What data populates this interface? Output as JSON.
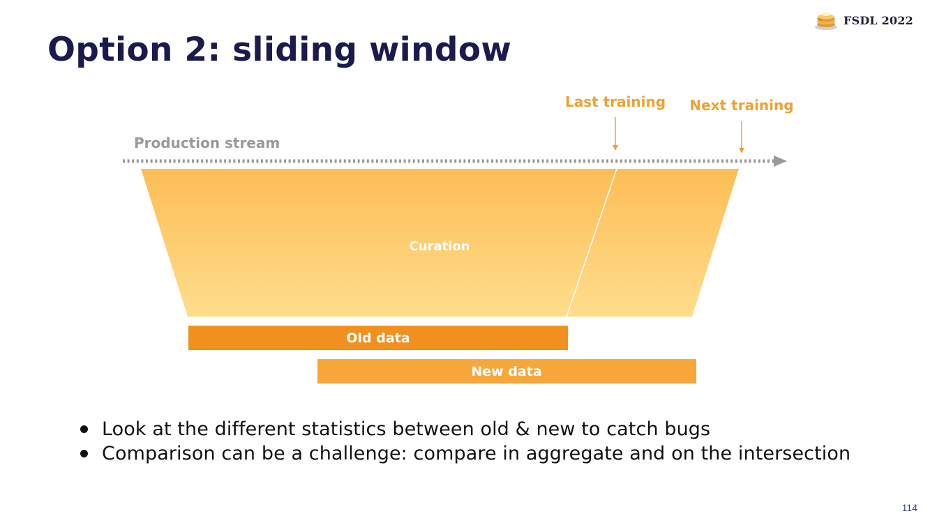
{
  "brand": {
    "name": "FSDL 2022",
    "icon": "pancake-stack-icon"
  },
  "slide": {
    "title": "Option 2: sliding window",
    "page_number": "114"
  },
  "diagram": {
    "stream_label": "Production stream",
    "last_training_label": "Last training",
    "next_training_label": "Next training",
    "curation_label": "Curation",
    "old_data_label": "Old data",
    "new_data_label": "New data",
    "colors": {
      "label_orange": "#f0a030",
      "stream_gray": "#999999",
      "funnel_top": "#fdbd57",
      "funnel_bottom": "#ffdd8c",
      "old_data": "#f0901e",
      "new_data": "#f7a73a"
    }
  },
  "bullets": [
    "Look at the different statistics between old & new to catch bugs",
    "Comparison can be a challenge: compare in aggregate and on the intersection"
  ]
}
